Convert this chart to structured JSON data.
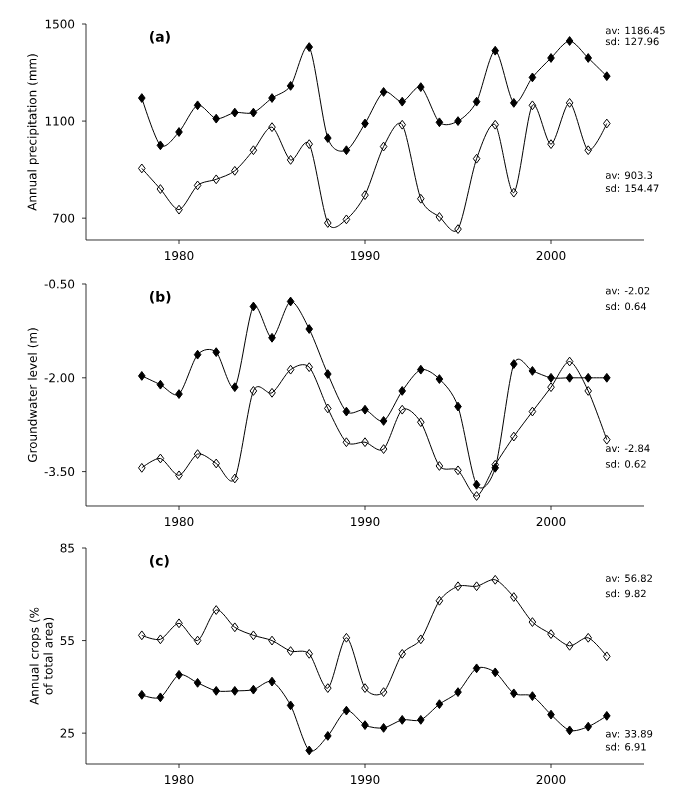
{
  "chart_data": [
    {
      "type": "line",
      "title": "(a)",
      "ylabel": "Annual precipitation (mm)",
      "marker": "diamond",
      "xlim": [
        1975,
        2005
      ],
      "xticks": [
        1980,
        1990,
        2000
      ],
      "ylim": [
        610,
        1500
      ],
      "yticks": [
        700,
        1100,
        1500
      ],
      "x": [
        1978,
        1979,
        1980,
        1981,
        1982,
        1983,
        1984,
        1985,
        1986,
        1987,
        1988,
        1989,
        1990,
        1991,
        1992,
        1993,
        1994,
        1995,
        1996,
        1997,
        1998,
        1999,
        2000,
        2001,
        2002,
        2003
      ],
      "series": [
        {
          "color": "#000000",
          "values": [
            1195,
            1000,
            1055,
            1165,
            1110,
            1135,
            1135,
            1195,
            1245,
            1405,
            1030,
            980,
            1090,
            1220,
            1180,
            1240,
            1095,
            1100,
            1180,
            1390,
            1175,
            1280,
            1360,
            1430,
            1360,
            1285
          ]
        },
        {
          "color": "#000000",
          "values": [
            905,
            820,
            735,
            835,
            860,
            895,
            980,
            1075,
            940,
            1005,
            680,
            695,
            795,
            995,
            1085,
            780,
            705,
            655,
            945,
            1085,
            805,
            1165,
            1005,
            1175,
            980,
            1090
          ]
        }
      ],
      "annotations": [
        "av: 1186.45",
        "sd: 127.96",
        "av: 903.3",
        "sd: 154.47"
      ]
    },
    {
      "type": "line",
      "title": "(b)",
      "ylabel": "Groundwater level (m)",
      "marker": "diamond",
      "xlim": [
        1975,
        2005
      ],
      "xticks": [
        1980,
        1990,
        2000
      ],
      "ylim": [
        -4.05,
        -0.5
      ],
      "yticks": [
        {
          "value": -0.5,
          "label": "-0.50"
        },
        {
          "value": -2,
          "label": "-2.00"
        },
        {
          "value": -3.5,
          "label": "-3.50"
        }
      ],
      "x": [
        1978,
        1979,
        1980,
        1981,
        1982,
        1983,
        1984,
        1985,
        1986,
        1987,
        1988,
        1989,
        1990,
        1991,
        1992,
        1993,
        1994,
        1995,
        1996,
        1997,
        1998,
        1999,
        2000,
        2001,
        2002,
        2003
      ],
      "series": [
        {
          "color": "#000000",
          "values": [
            -1.97,
            -2.11,
            -2.26,
            -1.63,
            -1.59,
            -2.15,
            -0.86,
            -1.36,
            -0.78,
            -1.22,
            -1.94,
            -2.54,
            -2.51,
            -2.69,
            -2.21,
            -1.87,
            -2.02,
            -2.46,
            -3.71,
            -3.44,
            -1.78,
            -1.89,
            -2.0,
            -2.0,
            -2.0,
            -2.0
          ]
        },
        {
          "color": "#000000",
          "values": [
            -3.44,
            -3.29,
            -3.56,
            -3.22,
            -3.37,
            -3.61,
            -2.21,
            -2.24,
            -1.87,
            -1.83,
            -2.49,
            -3.03,
            -3.03,
            -3.14,
            -2.51,
            -2.71,
            -3.41,
            -3.48,
            -3.89,
            -3.39,
            -2.94,
            -2.54,
            -2.15,
            -1.74,
            -2.21,
            -2.99
          ]
        }
      ],
      "annotations": [
        "av: -2.02",
        "sd: 0.64",
        "av: -2.84",
        "sd: 0.62"
      ]
    },
    {
      "type": "line",
      "title": "(c)",
      "ylabel": "Annual crops (% of total area)",
      "marker": "diamond",
      "xlim": [
        1975,
        2005
      ],
      "xticks": [
        1980,
        1990,
        2000
      ],
      "ylim": [
        15,
        85
      ],
      "yticks": [
        25,
        55,
        85
      ],
      "x": [
        1978,
        1979,
        1980,
        1981,
        1982,
        1983,
        1984,
        1985,
        1986,
        1987,
        1988,
        1989,
        1990,
        1991,
        1992,
        1993,
        1994,
        1995,
        1996,
        1997,
        1998,
        1999,
        2000,
        2001,
        2002,
        2003
      ],
      "series": [
        {
          "color": "#000000",
          "values": [
            37.4,
            36.6,
            43.9,
            41.3,
            38.7,
            38.7,
            39.1,
            41.7,
            34,
            19.4,
            24.1,
            32.3,
            27.6,
            26.7,
            29.3,
            29.3,
            34.4,
            38.3,
            46,
            44.7,
            37.9,
            37,
            31,
            25.9,
            27.1,
            30.6
          ]
        },
        {
          "color": "#000000",
          "values": [
            56.7,
            55.4,
            60.6,
            55,
            64.9,
            59.3,
            56.7,
            55,
            51.6,
            50.7,
            39.6,
            55.9,
            39.6,
            38.3,
            50.7,
            55.4,
            67.9,
            72.6,
            72.6,
            74.7,
            69.1,
            61,
            57.1,
            53.3,
            55.9,
            49.9
          ]
        }
      ],
      "annotations": [
        "av: 56.82",
        "sd: 9.82",
        "av: 33.89",
        "sd: 6.91"
      ]
    }
  ]
}
